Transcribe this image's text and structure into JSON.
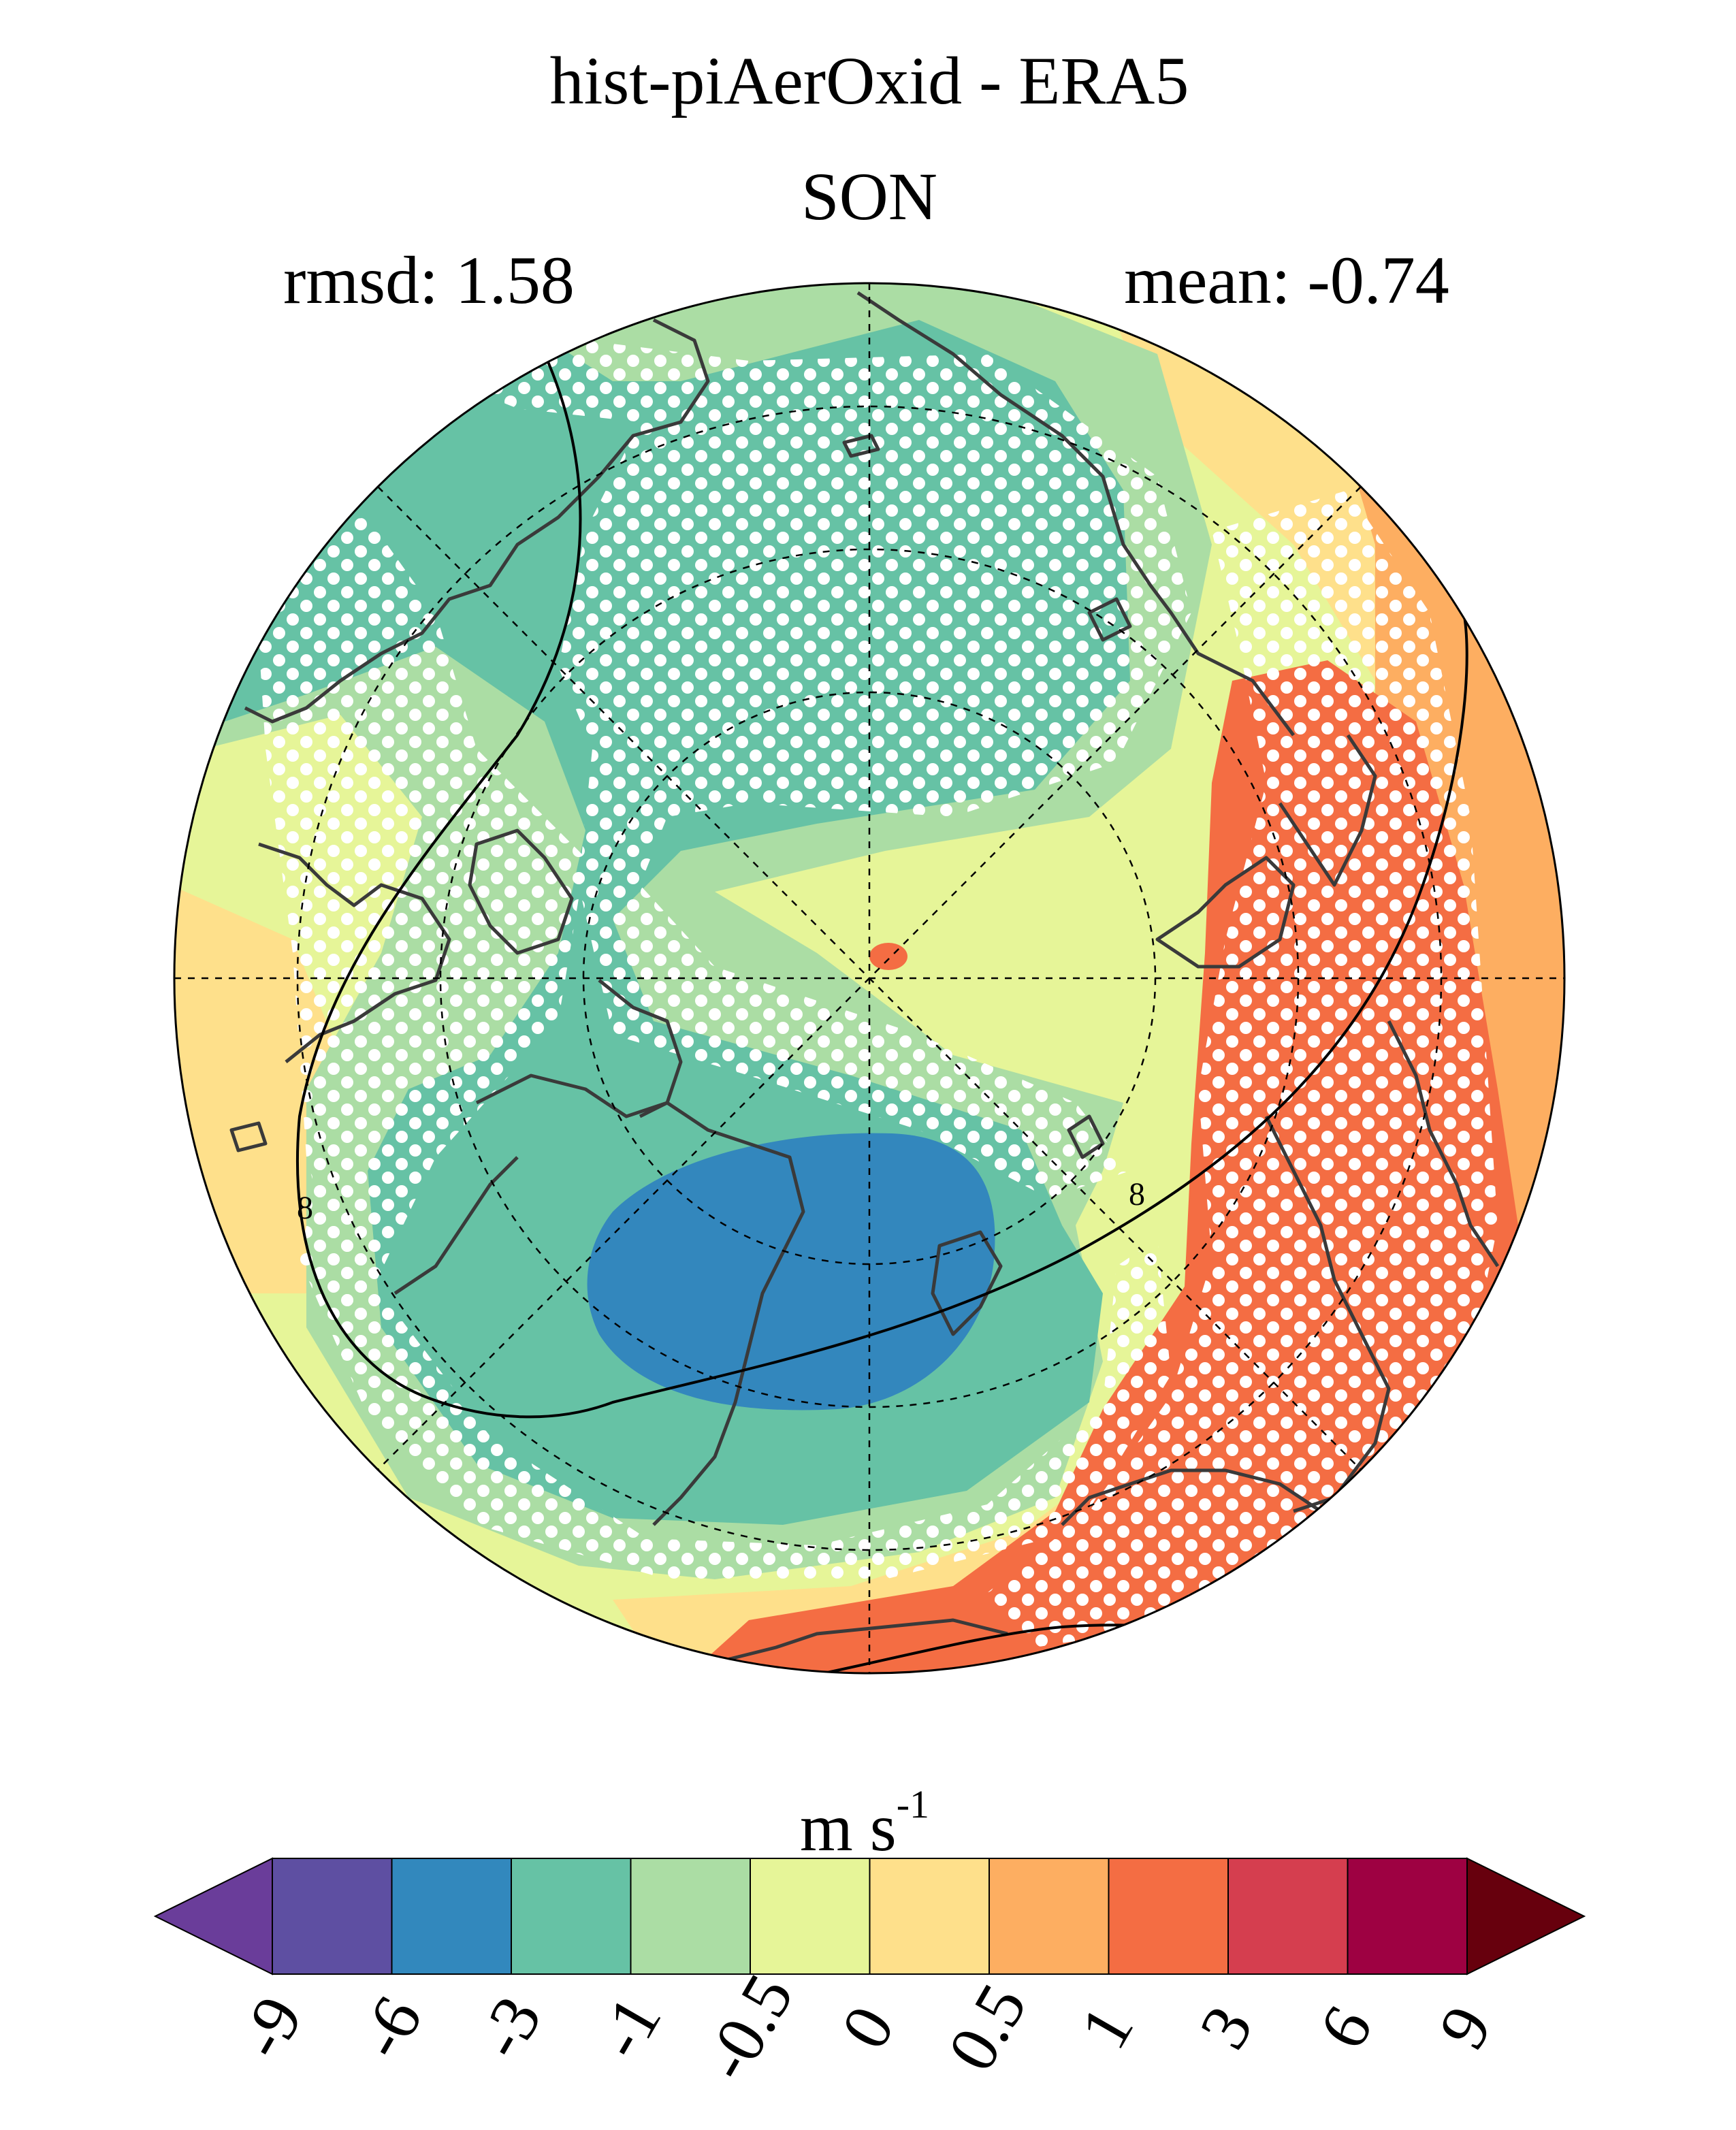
{
  "header": {
    "title": "hist-piAerOxid - ERA5",
    "season": "SON",
    "rmsd_label": "rmsd: 1.58",
    "mean_label": "mean: -0.74"
  },
  "map": {
    "projection": "north polar stereographic",
    "contour_label": "8",
    "stippling": "white dots mark significant differences",
    "colors": {
      "dark_blue": "#3387bd",
      "teal": "#66c2a5",
      "light_green": "#abdda4",
      "pale_yellow_green": "#e6f598",
      "pale_orange": "#fee08b",
      "orange": "#fdae61",
      "red_orange": "#f46d43"
    }
  },
  "colorbar": {
    "unit_main": "m s",
    "unit_exp": "-1",
    "ticks": [
      "-9",
      "-6",
      "-3",
      "-1",
      "-0.5",
      "0",
      "0.5",
      "1",
      "3",
      "6",
      "9"
    ],
    "colors": [
      "#5e4fa2",
      "#3288bd",
      "#66c2a5",
      "#abdda4",
      "#e6f598",
      "#fee08b",
      "#fdae61",
      "#f46d43",
      "#d53e4f",
      "#9e0142"
    ],
    "under_color": "#6a3d9a",
    "over_color": "#67000d"
  }
}
